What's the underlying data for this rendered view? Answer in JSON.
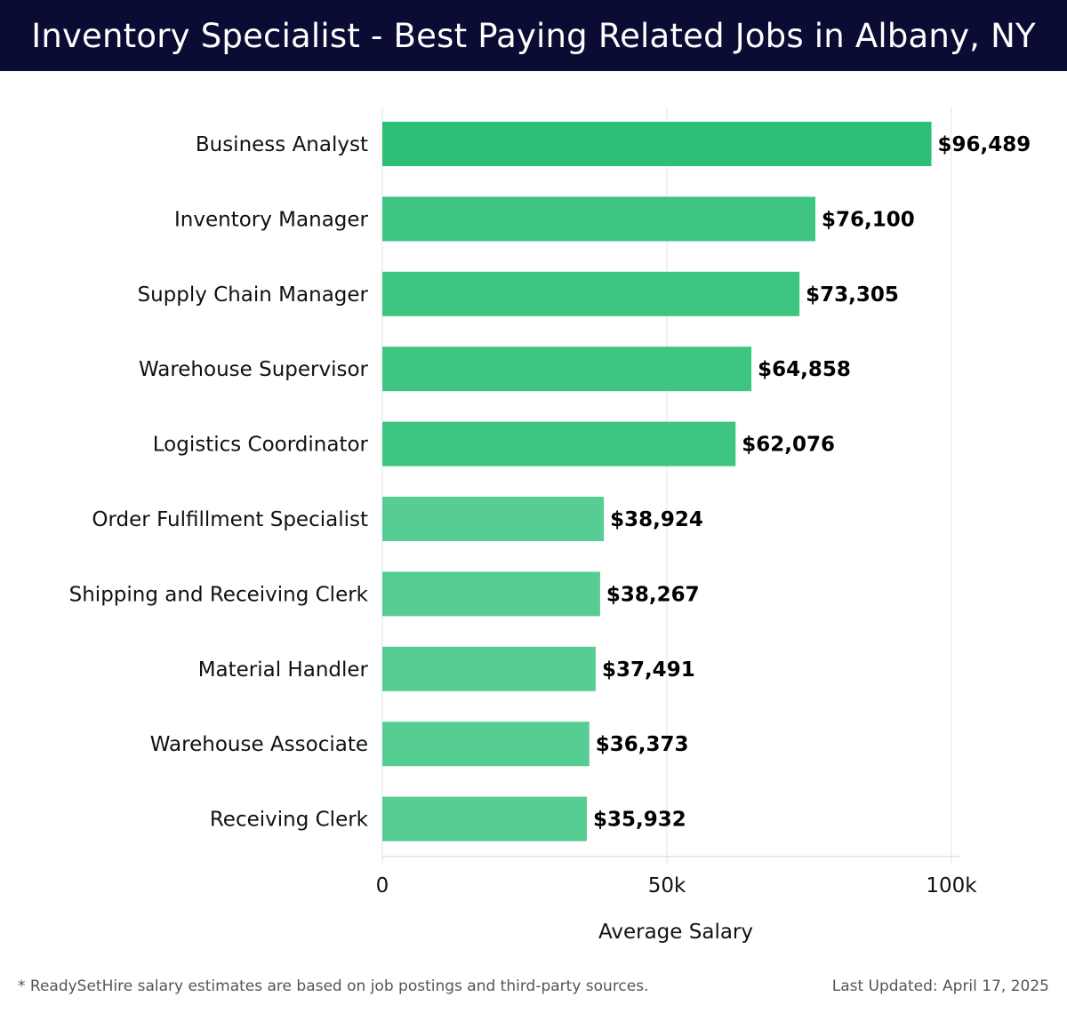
{
  "header": {
    "title": "Inventory Specialist - Best Paying Related Jobs in Albany, NY",
    "background": "#0b0c33"
  },
  "footer": {
    "note": "* ReadySetHire salary estimates are based on job postings and third-party sources.",
    "updated": "Last Updated: April 17, 2025"
  },
  "colors": {
    "bar_high": "#2ebf76",
    "bar_mid": "#3ec581",
    "bar_low": "#56cd92",
    "grid": "#e3e3e3",
    "axis": "#d0d0d0"
  },
  "chart_data": {
    "type": "bar",
    "orientation": "horizontal",
    "categories": [
      "Business Analyst",
      "Inventory Manager",
      "Supply Chain Manager",
      "Warehouse Supervisor",
      "Logistics Coordinator",
      "Order Fulfillment Specialist",
      "Shipping and Receiving Clerk",
      "Material Handler",
      "Warehouse Associate",
      "Receiving Clerk"
    ],
    "values": [
      96489,
      76100,
      73305,
      64858,
      62076,
      38924,
      38267,
      37491,
      36373,
      35932
    ],
    "value_labels": [
      "$96,489",
      "$76,100",
      "$73,305",
      "$64,858",
      "$62,076",
      "$38,924",
      "$38,267",
      "$37,491",
      "$36,373",
      "$35,932"
    ],
    "xlabel": "Average Salary",
    "ylabel": "",
    "xlim": [
      0,
      100000
    ],
    "ticks": [
      0,
      50000,
      100000
    ],
    "tick_labels": [
      "0",
      "50k",
      "100k"
    ],
    "grid": true
  }
}
